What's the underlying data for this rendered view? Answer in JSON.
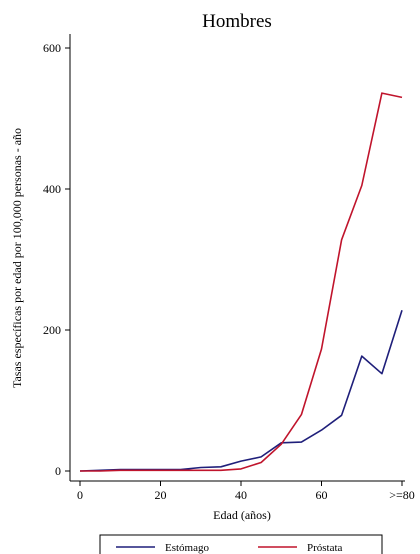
{
  "chart_data": {
    "type": "line",
    "title": "Hombres",
    "xlabel": "Edad (años)",
    "ylabel": "Tasas específicas por edad por 100,000 personas - año",
    "xlim": [
      0,
      80
    ],
    "ylim": [
      0,
      600
    ],
    "x_ticks": [
      {
        "value": 0,
        "label": "0"
      },
      {
        "value": 20,
        "label": "20"
      },
      {
        "value": 40,
        "label": "40"
      },
      {
        "value": 60,
        "label": "60"
      },
      {
        "value": 80,
        "label": ">=80"
      }
    ],
    "y_ticks": [
      {
        "value": 0,
        "label": "0"
      },
      {
        "value": 200,
        "label": "200"
      },
      {
        "value": 400,
        "label": "400"
      },
      {
        "value": 600,
        "label": "600"
      }
    ],
    "x": [
      0,
      5,
      10,
      15,
      20,
      25,
      30,
      35,
      40,
      45,
      50,
      55,
      60,
      65,
      70,
      75,
      80
    ],
    "series": [
      {
        "name": "Estómago",
        "color": "#1f1f7a",
        "values": [
          0,
          1,
          2,
          2,
          2,
          2,
          5,
          6,
          14,
          20,
          40,
          41,
          58,
          79,
          163,
          138,
          228
        ]
      },
      {
        "name": "Próstata",
        "color": "#c0142c",
        "values": [
          0,
          0,
          1,
          1,
          1,
          1,
          1,
          1,
          3,
          12,
          38,
          80,
          173,
          328,
          405,
          536,
          530
        ]
      }
    ],
    "grid": false,
    "legend_position": "bottom"
  }
}
